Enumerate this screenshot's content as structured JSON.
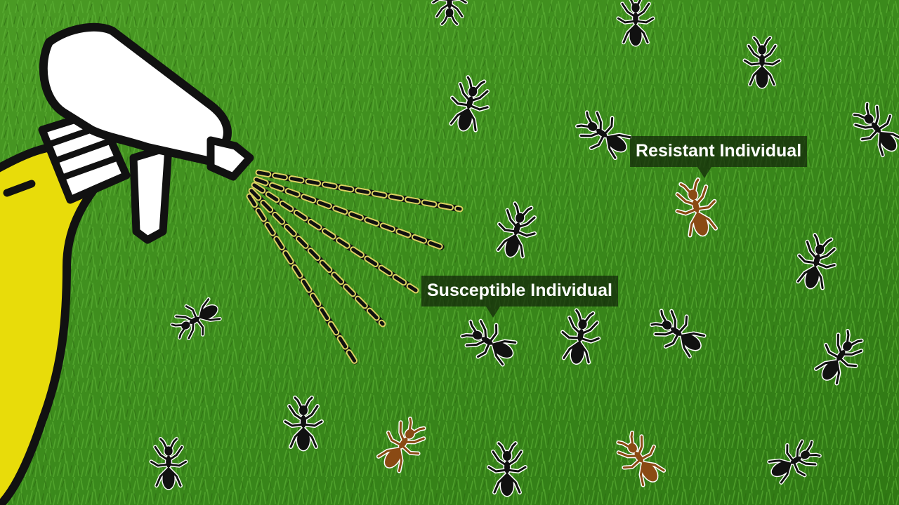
{
  "labels": {
    "resistant": "Resistant Individual",
    "susceptible": "Susceptible Individual"
  },
  "colors": {
    "grass": "#3f8f1f",
    "bottle": "#e8dc0a",
    "sprayer_head": "#ffffff",
    "outline": "#111111",
    "spray_dash": "#f2ea6a",
    "susceptible_ant": "#111111",
    "resistant_ant": "#8a4a14",
    "callout_bg": "#12260a"
  },
  "ants": [
    {
      "kind": "susceptible"
    },
    {
      "kind": "susceptible"
    },
    {
      "kind": "susceptible"
    },
    {
      "kind": "susceptible"
    },
    {
      "kind": "susceptible"
    },
    {
      "kind": "susceptible"
    },
    {
      "kind": "susceptible"
    },
    {
      "kind": "susceptible"
    },
    {
      "kind": "susceptible"
    },
    {
      "kind": "susceptible"
    },
    {
      "kind": "susceptible"
    },
    {
      "kind": "susceptible"
    },
    {
      "kind": "susceptible"
    },
    {
      "kind": "susceptible"
    },
    {
      "kind": "susceptible"
    },
    {
      "kind": "susceptible"
    },
    {
      "kind": "susceptible"
    },
    {
      "kind": "susceptible"
    },
    {
      "kind": "resistant"
    },
    {
      "kind": "resistant"
    },
    {
      "kind": "resistant"
    }
  ]
}
